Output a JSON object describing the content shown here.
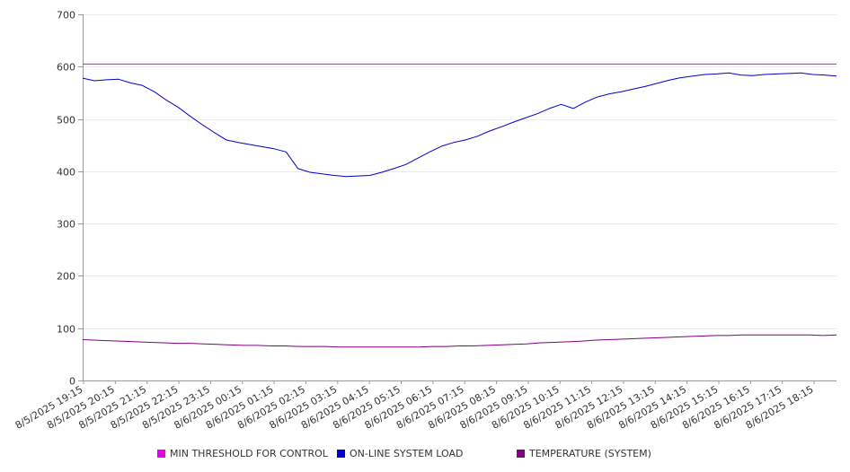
{
  "chart_data": {
    "type": "line",
    "title": "",
    "xlabel": "",
    "ylabel": "",
    "ylim": [
      0,
      700
    ],
    "yticks": [
      0,
      100,
      200,
      300,
      400,
      500,
      600,
      700
    ],
    "grid": true,
    "legend_position": "bottom",
    "x_tick_labels": [
      "8/5/2025 19:15",
      "8/5/2025 20:15",
      "8/5/2025 21:15",
      "8/5/2025 22:15",
      "8/5/2025 23:15",
      "8/6/2025 00:15",
      "8/6/2025 01:15",
      "8/6/2025 02:15",
      "8/6/2025 03:15",
      "8/6/2025 04:15",
      "8/6/2025 05:15",
      "8/6/2025 06:15",
      "8/6/2025 07:15",
      "8/6/2025 08:15",
      "8/6/2025 09:15",
      "8/6/2025 10:15",
      "8/6/2025 11:15",
      "8/6/2025 12:15",
      "8/6/2025 13:15",
      "8/6/2025 14:15",
      "8/6/2025 15:15",
      "8/6/2025 16:15",
      "8/6/2025 17:15",
      "8/6/2025 18:15"
    ],
    "series": [
      {
        "name": "MIN THRESHOLD FOR CONTROL",
        "color": "#e600e6",
        "values": [
          605,
          605,
          605,
          605,
          605,
          605,
          605,
          605,
          605,
          605,
          605,
          605,
          605,
          605,
          605,
          605,
          605,
          605,
          605,
          605,
          605,
          605,
          605,
          605,
          605,
          605,
          605,
          605,
          605,
          605,
          605,
          605,
          605,
          605,
          605,
          605,
          605,
          605,
          605,
          605,
          605,
          605,
          605,
          605,
          605,
          605,
          605,
          605,
          605
        ]
      },
      {
        "name": "ON-LINE SYSTEM LOAD",
        "color": "#0000cc",
        "values": [
          578,
          573,
          575,
          576,
          569,
          564,
          552,
          536,
          522,
          505,
          489,
          474,
          460,
          455,
          451,
          447,
          443,
          437,
          405,
          398,
          395,
          392,
          390,
          391,
          392,
          398,
          405,
          413,
          425,
          437,
          448,
          455,
          460,
          467,
          477,
          485,
          494,
          502,
          510,
          520,
          528,
          520,
          532,
          542,
          548,
          552,
          557,
          562,
          568,
          574,
          579,
          582,
          585,
          586,
          588,
          584,
          583,
          585,
          586,
          587,
          588,
          585,
          584,
          582
        ]
      },
      {
        "name": "TEMPERATURE (SYSTEM)",
        "color": "#800080",
        "values": [
          78,
          77,
          76,
          75,
          74,
          73,
          72,
          71,
          71,
          70,
          69,
          68,
          67,
          67,
          66,
          66,
          65,
          65,
          65,
          64,
          64,
          64,
          64,
          64,
          64,
          64,
          65,
          65,
          66,
          66,
          67,
          68,
          69,
          70,
          72,
          73,
          74,
          75,
          77,
          78,
          79,
          80,
          81,
          82,
          83,
          84,
          85,
          86,
          86,
          87,
          87,
          87,
          87,
          87,
          87,
          86,
          87
        ]
      }
    ]
  }
}
